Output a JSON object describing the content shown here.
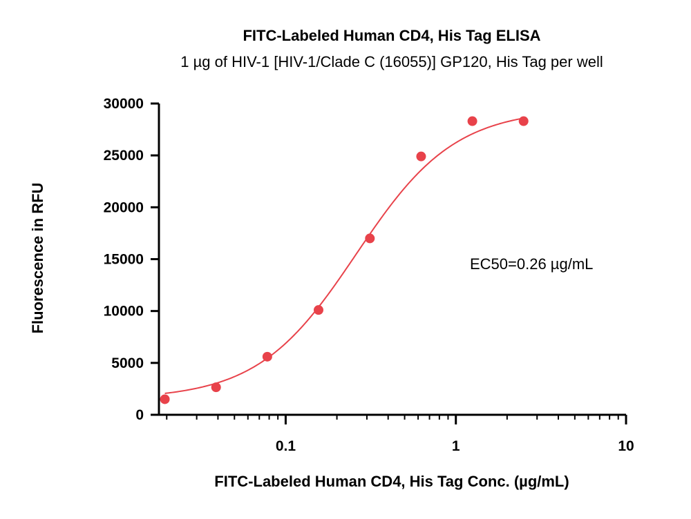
{
  "chart_data": {
    "type": "scatter",
    "title": "FITC-Labeled Human CD4, His Tag ELISA",
    "subtitle": "1 µg of HIV-1 [HIV-1/Clade C (16055)] GP120, His Tag per well",
    "xlabel": "FITC-Labeled Human CD4, His Tag Conc. (µg/mL)",
    "ylabel": "Fluorescence in RFU",
    "x_scale": "log",
    "xlim": [
      0.018,
      10
    ],
    "ylim": [
      0,
      30000
    ],
    "x_ticks": [
      0.1,
      1,
      10
    ],
    "x_tick_labels": [
      "0.1",
      "1",
      "10"
    ],
    "y_ticks": [
      0,
      5000,
      10000,
      15000,
      20000,
      25000,
      30000
    ],
    "y_tick_labels": [
      "0",
      "5000",
      "10000",
      "15000",
      "20000",
      "25000",
      "30000"
    ],
    "grid": false,
    "series": [
      {
        "color": "#e8424a",
        "x": [
          0.0195,
          0.039,
          0.078,
          0.156,
          0.3125,
          0.625,
          1.25,
          2.5
        ],
        "y": [
          1500,
          2650,
          5600,
          10100,
          17000,
          24900,
          28300,
          28300
        ]
      }
    ],
    "fit": {
      "model": "4PL",
      "bottom": 1500,
      "top": 29500,
      "ec50": 0.26,
      "hill": 1.5,
      "color": "#e8424a"
    },
    "annotation": "EC50=0.26 µg/mL"
  }
}
